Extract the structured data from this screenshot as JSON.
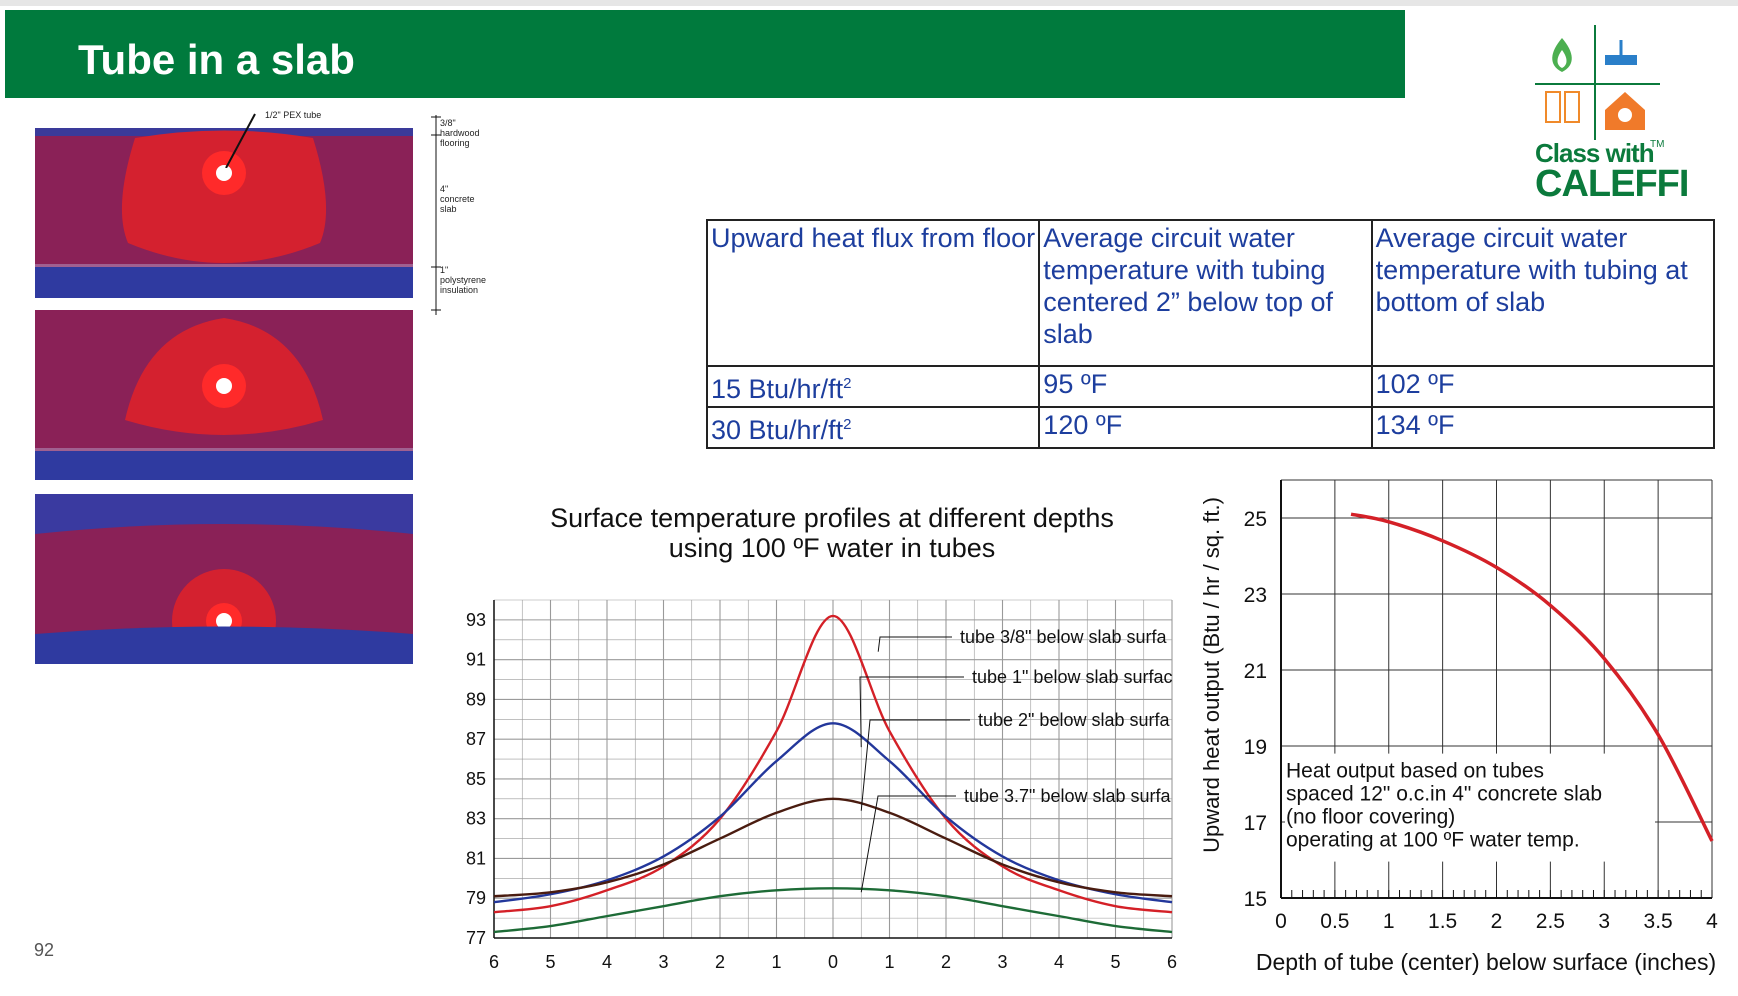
{
  "title": "Tube in a slab",
  "page_number": "92",
  "logo": {
    "line1": "Class with",
    "line2": "CALEFFI",
    "tm": "TM"
  },
  "slab_annotations": {
    "tube": "1/2\" PEX tube",
    "flooring": [
      "3/8\"",
      "hardwood",
      "flooring"
    ],
    "slab": [
      "4\"",
      "concrete",
      "slab"
    ],
    "insulation": [
      "1\"",
      "polystyrene",
      "insulation"
    ]
  },
  "table": {
    "headers": [
      "Upward heat flux from floor",
      "Average circuit water temperature with tubing centered 2” below top of slab",
      "Average circuit water temperature with tubing at bottom of slab"
    ],
    "rows": [
      {
        "flux": "15 Btu/hr/ft",
        "sup": "2",
        "centered": "95 ºF",
        "bottom": "102 ºF"
      },
      {
        "flux": "30 Btu/hr/ft",
        "sup": "2",
        "centered": "120 ºF",
        "bottom": "134 ºF"
      }
    ]
  },
  "chart_data": [
    {
      "type": "line",
      "title": "Surface temperature profiles at different depths",
      "subtitle": "using 100 ºF water in tubes",
      "x_ticks": [
        "6",
        "5",
        "4",
        "3",
        "2",
        "1",
        "0",
        "1",
        "2",
        "3",
        "4",
        "5",
        "6"
      ],
      "y_ticks": [
        "93",
        "91",
        "89",
        "87",
        "85",
        "83",
        "81",
        "79",
        "77"
      ],
      "xlim": [
        -6,
        6
      ],
      "ylim": [
        77,
        94
      ],
      "series": [
        {
          "name": "tube 3/8\" below slab surfa",
          "color": "#d42027",
          "x": [
            -6,
            -5,
            -4,
            -3,
            -2,
            -1,
            0,
            1,
            2,
            3,
            4,
            5,
            6
          ],
          "y": [
            78.3,
            78.6,
            79.4,
            80.6,
            83.0,
            87.4,
            93.2,
            87.4,
            83.0,
            80.6,
            79.4,
            78.6,
            78.3
          ]
        },
        {
          "name": "tube 1\" below slab surfac",
          "color": "#23379b",
          "x": [
            -6,
            -5,
            -4,
            -3,
            -2,
            -1,
            0,
            1,
            2,
            3,
            4,
            5,
            6
          ],
          "y": [
            78.8,
            79.2,
            79.9,
            81.1,
            83.1,
            85.9,
            87.8,
            85.9,
            83.1,
            81.1,
            79.9,
            79.2,
            78.8
          ]
        },
        {
          "name": "tube 2\" below slab surfa",
          "color": "#4a1c10",
          "x": [
            -6,
            -5,
            -4,
            -3,
            -2,
            -1,
            0,
            1,
            2,
            3,
            4,
            5,
            6
          ],
          "y": [
            79.1,
            79.3,
            79.8,
            80.7,
            82.0,
            83.3,
            84.0,
            83.3,
            82.0,
            80.7,
            79.8,
            79.3,
            79.1
          ]
        },
        {
          "name": "tube 3.7\" below slab surfa",
          "color": "#1d6b36",
          "x": [
            -6,
            -5,
            -4,
            -3,
            -2,
            -1,
            0,
            1,
            2,
            3,
            4,
            5,
            6
          ],
          "y": [
            77.3,
            77.6,
            78.1,
            78.6,
            79.1,
            79.4,
            79.5,
            79.4,
            79.1,
            78.6,
            78.1,
            77.6,
            77.3
          ]
        }
      ]
    },
    {
      "type": "line",
      "xlabel": "Depth of tube (center) below surface (inches)",
      "ylabel": "Upward heat output (Btu / hr / sq. ft.)",
      "x_ticks": [
        "0",
        "0.5",
        "1",
        "1.5",
        "2",
        "2.5",
        "3",
        "3.5",
        "4"
      ],
      "y_ticks": [
        "25",
        "23",
        "21",
        "19",
        "17",
        "15"
      ],
      "xlim": [
        0,
        4
      ],
      "ylim": [
        15,
        26
      ],
      "note": [
        "Heat output based on tubes",
        "spaced 12\" o.c.in 4\" concrete slab",
        "(no floor covering)",
        "operating at 100 ºF water temp."
      ],
      "series": [
        {
          "name": "",
          "color": "#d42027",
          "x": [
            0.65,
            1.0,
            1.5,
            2.0,
            2.5,
            3.0,
            3.5,
            4.0
          ],
          "y": [
            25.1,
            24.9,
            24.4,
            23.7,
            22.7,
            21.3,
            19.3,
            16.5
          ]
        }
      ]
    }
  ]
}
